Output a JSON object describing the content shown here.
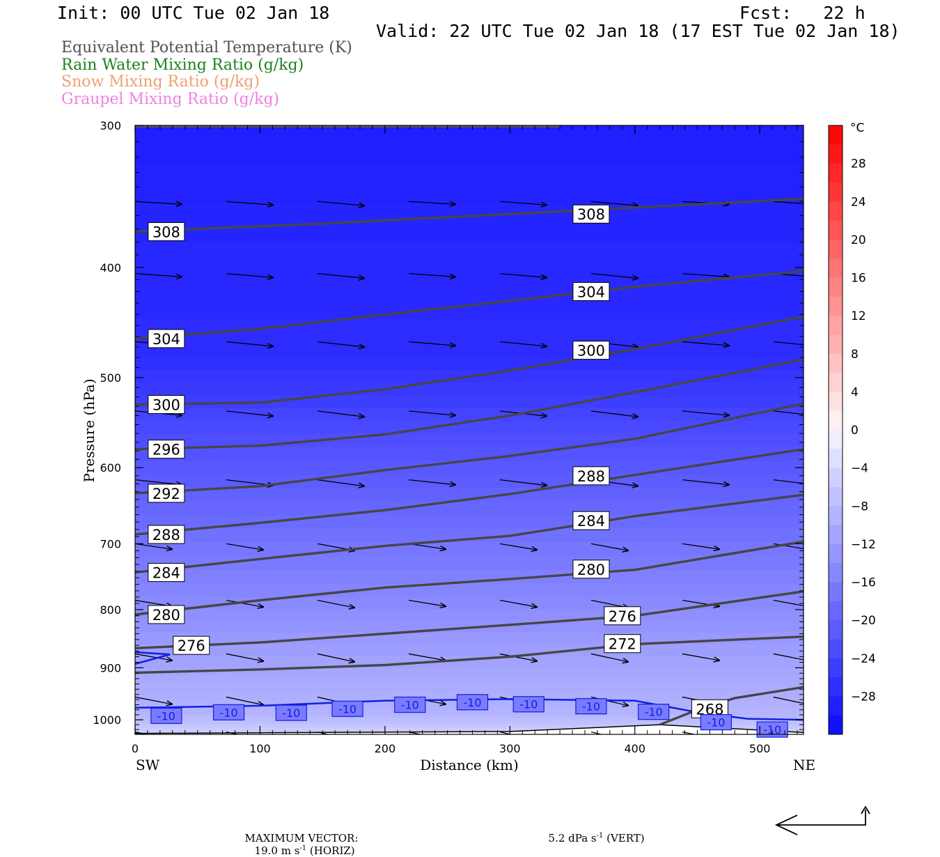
{
  "header": {
    "init": "Init: 00 UTC Tue 02 Jan 18",
    "fcst": "Fcst:   22 h",
    "valid": "Valid: 22 UTC Tue 02 Jan 18 (17 EST Tue 02 Jan 18)"
  },
  "legend": [
    {
      "label": "Equivalent Potential Temperature (K)",
      "color": "#505050"
    },
    {
      "label": "Rain Water Mixing Ratio (g/kg)",
      "color": "#1f7f1f"
    },
    {
      "label": "Snow Mixing Ratio (g/kg)",
      "color": "#f0a070"
    },
    {
      "label": "Graupel Mixing Ratio (g/kg)",
      "color": "#f080e0"
    }
  ],
  "footer": {
    "label": "MAXIMUM VECTOR:",
    "horiz_value": "19.0 m s",
    "horiz_exp": "-1",
    "horiz_suffix": " (HORIZ)",
    "vert_value": "5.2 dPa s",
    "vert_exp": "-1",
    "vert_suffix": " (VERT)"
  },
  "chart_data": {
    "type": "cross-section",
    "xlabel": "Distance (km)",
    "ylabel": "Pressure (hPa)",
    "x_endpoints": {
      "left": "SW",
      "right": "NE"
    },
    "xlim": [
      0,
      535
    ],
    "ylim": [
      1030,
      300
    ],
    "y_log_scale": true,
    "x_ticks": [
      0,
      100,
      200,
      300,
      400,
      500
    ],
    "y_ticks": [
      300,
      400,
      500,
      600,
      700,
      800,
      900,
      1000
    ],
    "colorbar": {
      "unit": "°C",
      "range": [
        -32,
        32
      ],
      "labels": [
        28,
        24,
        20,
        16,
        12,
        8,
        4,
        0,
        -4,
        -8,
        -12,
        -16,
        -20,
        -24,
        -28
      ]
    },
    "temperature_field": [
      {
        "p": 300,
        "t": -30
      },
      {
        "p": 480,
        "t": -28
      },
      {
        "p": 560,
        "t": -24
      },
      {
        "p": 660,
        "t": -20
      },
      {
        "p": 780,
        "t": -16
      },
      {
        "p": 900,
        "t": -12
      },
      {
        "p": 990,
        "t": -10
      },
      {
        "p": 1030,
        "t": -6
      }
    ],
    "theta_e_contours": [
      {
        "value": 308,
        "points": [
          [
            0,
            372
          ],
          [
            150,
            366
          ],
          [
            300,
            359
          ],
          [
            450,
            352
          ],
          [
            535,
            348
          ]
        ],
        "labels": [
          [
            25,
            372
          ],
          [
            365,
            359
          ]
        ]
      },
      {
        "value": 304,
        "points": [
          [
            0,
            462
          ],
          [
            100,
            453
          ],
          [
            200,
            440
          ],
          [
            300,
            428
          ],
          [
            400,
            416
          ],
          [
            535,
            403
          ]
        ],
        "labels": [
          [
            25,
            462
          ],
          [
            365,
            420
          ]
        ]
      },
      {
        "value": 300,
        "points": [
          [
            0,
            528
          ],
          [
            100,
            526
          ],
          [
            200,
            512
          ],
          [
            300,
            493
          ],
          [
            400,
            472
          ],
          [
            535,
            442
          ]
        ],
        "labels": [
          [
            25,
            528
          ],
          [
            365,
            473
          ]
        ]
      },
      {
        "value": 296,
        "points": [
          [
            0,
            578
          ],
          [
            100,
            574
          ],
          [
            200,
            561
          ],
          [
            300,
            540
          ],
          [
            400,
            515
          ],
          [
            535,
            482
          ]
        ],
        "labels": [
          [
            25,
            578
          ]
        ]
      },
      {
        "value": 292,
        "points": [
          [
            0,
            632
          ],
          [
            100,
            623
          ],
          [
            200,
            603
          ],
          [
            300,
            586
          ],
          [
            400,
            566
          ],
          [
            535,
            527
          ]
        ],
        "labels": [
          [
            25,
            632
          ]
        ]
      },
      {
        "value": 288,
        "points": [
          [
            0,
            687
          ],
          [
            100,
            671
          ],
          [
            200,
            654
          ],
          [
            300,
            633
          ],
          [
            400,
            609
          ],
          [
            535,
            578
          ]
        ],
        "labels": [
          [
            25,
            687
          ],
          [
            365,
            610
          ]
        ]
      },
      {
        "value": 284,
        "points": [
          [
            0,
            742
          ],
          [
            100,
            722
          ],
          [
            200,
            703
          ],
          [
            300,
            689
          ],
          [
            400,
            662
          ],
          [
            535,
            634
          ]
        ],
        "labels": [
          [
            25,
            742
          ],
          [
            365,
            668
          ]
        ]
      },
      {
        "value": 280,
        "points": [
          [
            0,
            808
          ],
          [
            100,
            785
          ],
          [
            200,
            765
          ],
          [
            300,
            752
          ],
          [
            400,
            738
          ],
          [
            535,
            697
          ]
        ],
        "labels": [
          [
            25,
            808
          ],
          [
            365,
            737
          ]
        ]
      },
      {
        "value": 276,
        "points": [
          [
            0,
            865
          ],
          [
            100,
            855
          ],
          [
            200,
            840
          ],
          [
            300,
            825
          ],
          [
            400,
            810
          ],
          [
            535,
            771
          ]
        ],
        "labels": [
          [
            45,
            860
          ],
          [
            390,
            810
          ]
        ]
      },
      {
        "value": 272,
        "points": [
          [
            0,
            909
          ],
          [
            100,
            903
          ],
          [
            200,
            895
          ],
          [
            300,
            880
          ],
          [
            400,
            858
          ],
          [
            535,
            845
          ]
        ],
        "labels": [
          [
            390,
            857
          ]
        ]
      },
      {
        "value": 268,
        "points": [
          [
            420,
            1010
          ],
          [
            450,
            980
          ],
          [
            480,
            957
          ],
          [
            535,
            936
          ]
        ],
        "labels": [
          [
            460,
            978
          ]
        ]
      }
    ],
    "isotherm_minus10": {
      "value": -10,
      "points": [
        [
          0,
          976
        ],
        [
          100,
          972
        ],
        [
          200,
          962
        ],
        [
          300,
          959
        ],
        [
          400,
          962
        ],
        [
          450,
          985
        ],
        [
          490,
          998
        ],
        [
          535,
          1000
        ]
      ],
      "labels": [
        [
          25,
          992
        ],
        [
          75,
          985
        ],
        [
          125,
          986
        ],
        [
          170,
          978
        ],
        [
          220,
          970
        ],
        [
          270,
          965
        ],
        [
          315,
          969
        ],
        [
          365,
          973
        ],
        [
          415,
          984
        ],
        [
          465,
          1005
        ],
        [
          510,
          1020
        ]
      ]
    },
    "wind_vectors": {
      "columns": [
        0,
        73,
        146,
        219,
        292,
        365,
        438,
        511
      ],
      "levels": [
        350,
        405,
        465,
        535,
        615,
        700,
        785,
        875,
        955,
        1025
      ]
    }
  }
}
